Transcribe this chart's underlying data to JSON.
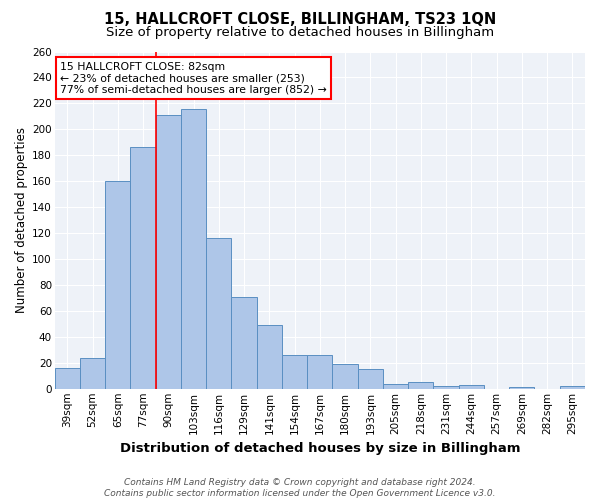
{
  "title": "15, HALLCROFT CLOSE, BILLINGHAM, TS23 1QN",
  "subtitle": "Size of property relative to detached houses in Billingham",
  "xlabel": "Distribution of detached houses by size in Billingham",
  "ylabel": "Number of detached properties",
  "categories": [
    "39sqm",
    "52sqm",
    "65sqm",
    "77sqm",
    "90sqm",
    "103sqm",
    "116sqm",
    "129sqm",
    "141sqm",
    "154sqm",
    "167sqm",
    "180sqm",
    "193sqm",
    "205sqm",
    "218sqm",
    "231sqm",
    "244sqm",
    "257sqm",
    "269sqm",
    "282sqm",
    "295sqm"
  ],
  "values": [
    16,
    24,
    160,
    186,
    211,
    216,
    116,
    71,
    49,
    26,
    26,
    19,
    15,
    4,
    5,
    2,
    3,
    0,
    1,
    0,
    2
  ],
  "bar_color": "#aec6e8",
  "bar_edge_color": "#5a8fc2",
  "red_line_x": 3.5,
  "annotation_line1": "15 HALLCROFT CLOSE: 82sqm",
  "annotation_line2": "← 23% of detached houses are smaller (253)",
  "annotation_line3": "77% of semi-detached houses are larger (852) →",
  "annotation_box_color": "white",
  "annotation_box_edge_color": "red",
  "footer_line1": "Contains HM Land Registry data © Crown copyright and database right 2024.",
  "footer_line2": "Contains public sector information licensed under the Open Government Licence v3.0.",
  "bg_color": "#eef2f8",
  "ylim": [
    0,
    260
  ],
  "title_fontsize": 10.5,
  "subtitle_fontsize": 9.5,
  "xlabel_fontsize": 9.5,
  "ylabel_fontsize": 8.5,
  "tick_fontsize": 7.5,
  "annotation_fontsize": 7.8,
  "footer_fontsize": 6.5
}
